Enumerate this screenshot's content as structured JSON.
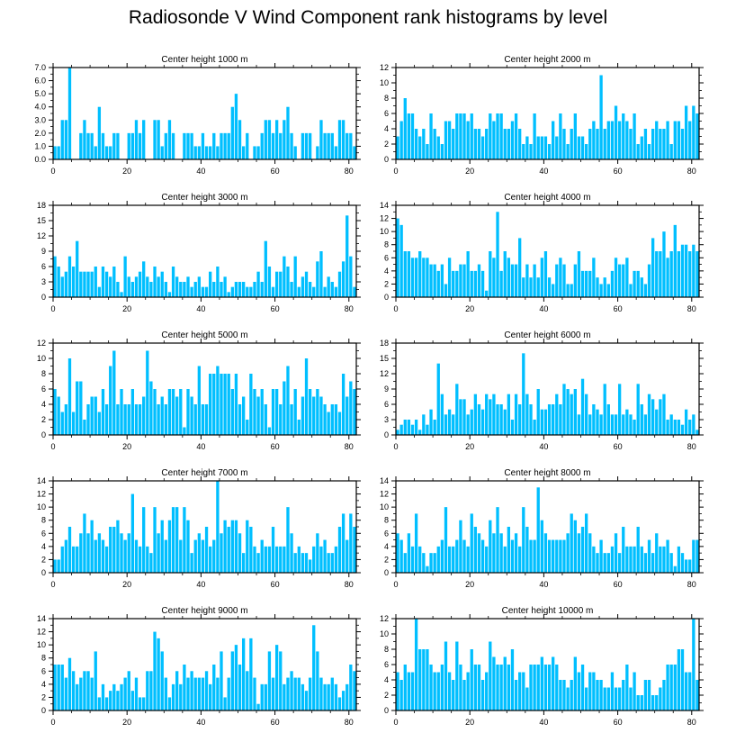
{
  "title": "Radiosonde V Wind Component rank histograms by level",
  "bar_color": "#00bfff",
  "chart_data": [
    {
      "type": "bar",
      "title": "Center height 1000 m",
      "ylim": [
        0,
        7
      ],
      "yticks": [
        0,
        1,
        2,
        3,
        4,
        5,
        6,
        7
      ],
      "ytick_labels": [
        "0.0",
        "1.0",
        "2.0",
        "3.0",
        "4.0",
        "5.0",
        "6.0",
        "7.0"
      ],
      "xticks": [
        0,
        20,
        40,
        60,
        80
      ],
      "xlim": [
        0,
        82
      ],
      "values": [
        1,
        1,
        3,
        3,
        7,
        0,
        0,
        2,
        3,
        2,
        2,
        1,
        4,
        2,
        1,
        1,
        2,
        2,
        0,
        0,
        2,
        2,
        3,
        2,
        3,
        0,
        0,
        3,
        3,
        1,
        2,
        3,
        2,
        0,
        0,
        2,
        2,
        2,
        1,
        1,
        2,
        1,
        1,
        2,
        1,
        2,
        2,
        2,
        4,
        5,
        3,
        1,
        2,
        0,
        1,
        1,
        2,
        3,
        3,
        2,
        3,
        2,
        3,
        4,
        2,
        1,
        0,
        2,
        2,
        2,
        0,
        1,
        3,
        2,
        2,
        2,
        1,
        3,
        3,
        2,
        2,
        1
      ]
    },
    {
      "type": "bar",
      "title": "Center height 2000 m",
      "ylim": [
        0,
        12
      ],
      "yticks": [
        0,
        2,
        4,
        6,
        8,
        10,
        12
      ],
      "ytick_labels": [
        "0",
        "2",
        "4",
        "6",
        "8",
        "10",
        "12"
      ],
      "xticks": [
        0,
        20,
        40,
        60,
        80
      ],
      "xlim": [
        0,
        82
      ],
      "values": [
        3,
        5,
        8,
        6,
        6,
        4,
        3,
        4,
        2,
        6,
        4,
        3,
        2,
        5,
        5,
        4,
        6,
        6,
        6,
        5,
        6,
        4,
        4,
        3,
        4,
        6,
        5,
        6,
        6,
        4,
        4,
        5,
        6,
        4,
        2,
        3,
        2,
        6,
        3,
        3,
        3,
        2,
        5,
        3,
        6,
        4,
        2,
        4,
        6,
        3,
        3,
        2,
        4,
        5,
        4,
        11,
        4,
        5,
        5,
        7,
        5,
        6,
        5,
        4,
        6,
        2,
        3,
        4,
        2,
        4,
        5,
        4,
        4,
        5,
        2,
        5,
        5,
        4,
        7,
        5,
        7,
        6
      ]
    },
    {
      "type": "bar",
      "title": "Center height 3000 m",
      "ylim": [
        0,
        18
      ],
      "yticks": [
        0,
        3,
        6,
        9,
        12,
        15,
        18
      ],
      "ytick_labels": [
        "0",
        "3",
        "6",
        "9",
        "12",
        "15",
        "18"
      ],
      "xticks": [
        0,
        20,
        40,
        60,
        80
      ],
      "xlim": [
        0,
        82
      ],
      "values": [
        8,
        6,
        4,
        5,
        8,
        6,
        11,
        5,
        5,
        5,
        5,
        6,
        2,
        6,
        5,
        4,
        6,
        3,
        1,
        8,
        4,
        3,
        4,
        5,
        7,
        4,
        3,
        6,
        4,
        5,
        3,
        1,
        6,
        4,
        3,
        3,
        4,
        2,
        3,
        4,
        2,
        2,
        5,
        3,
        6,
        3,
        4,
        1,
        2,
        3,
        3,
        3,
        2,
        2,
        3,
        5,
        3,
        11,
        6,
        2,
        5,
        5,
        8,
        6,
        3,
        8,
        2,
        4,
        5,
        3,
        2,
        7,
        9,
        2,
        4,
        3,
        2,
        5,
        7,
        16,
        8,
        2
      ]
    },
    {
      "type": "bar",
      "title": "Center height 4000 m",
      "ylim": [
        0,
        14
      ],
      "yticks": [
        0,
        2,
        4,
        6,
        8,
        10,
        12,
        14
      ],
      "ytick_labels": [
        "0",
        "2",
        "4",
        "6",
        "8",
        "10",
        "12",
        "14"
      ],
      "xticks": [
        0,
        20,
        40,
        60,
        80
      ],
      "xlim": [
        0,
        82
      ],
      "values": [
        12,
        11,
        7,
        7,
        6,
        6,
        7,
        6,
        6,
        5,
        5,
        4,
        5,
        2,
        6,
        4,
        4,
        5,
        5,
        7,
        4,
        4,
        5,
        4,
        1,
        7,
        6,
        13,
        4,
        7,
        6,
        5,
        5,
        9,
        3,
        5,
        3,
        5,
        3,
        6,
        7,
        3,
        2,
        5,
        6,
        5,
        2,
        2,
        5,
        7,
        4,
        4,
        4,
        6,
        3,
        2,
        3,
        2,
        4,
        6,
        5,
        5,
        6,
        2,
        4,
        4,
        3,
        2,
        5,
        9,
        7,
        7,
        10,
        6,
        7,
        11,
        7,
        8,
        8,
        7,
        8,
        7
      ]
    },
    {
      "type": "bar",
      "title": "Center height 5000 m",
      "ylim": [
        0,
        12
      ],
      "yticks": [
        0,
        2,
        4,
        6,
        8,
        10,
        12
      ],
      "ytick_labels": [
        "0",
        "2",
        "4",
        "6",
        "8",
        "10",
        "12"
      ],
      "xticks": [
        0,
        20,
        40,
        60,
        80
      ],
      "xlim": [
        0,
        82
      ],
      "values": [
        6,
        5,
        3,
        4,
        10,
        3,
        7,
        7,
        2,
        4,
        5,
        5,
        3,
        6,
        4,
        9,
        11,
        4,
        6,
        4,
        4,
        6,
        4,
        4,
        5,
        11,
        7,
        6,
        4,
        5,
        4,
        6,
        6,
        5,
        6,
        1,
        6,
        5,
        4,
        9,
        4,
        4,
        8,
        8,
        9,
        8,
        8,
        8,
        6,
        8,
        4,
        5,
        2,
        8,
        6,
        5,
        6,
        4,
        1,
        6,
        6,
        4,
        7,
        9,
        4,
        6,
        2,
        5,
        10,
        6,
        5,
        6,
        5,
        4,
        3,
        4,
        4,
        3,
        8,
        5,
        7,
        6
      ]
    },
    {
      "type": "bar",
      "title": "Center height 6000 m",
      "ylim": [
        0,
        18
      ],
      "yticks": [
        0,
        3,
        6,
        9,
        12,
        15,
        18
      ],
      "ytick_labels": [
        "0",
        "3",
        "6",
        "9",
        "12",
        "15",
        "18"
      ],
      "xticks": [
        0,
        20,
        40,
        60,
        80
      ],
      "xlim": [
        0,
        82
      ],
      "values": [
        1,
        2,
        3,
        3,
        2,
        3,
        1,
        4,
        2,
        5,
        3,
        14,
        8,
        4,
        5,
        4,
        10,
        7,
        7,
        4,
        5,
        8,
        6,
        5,
        8,
        7,
        8,
        6,
        6,
        5,
        8,
        3,
        8,
        6,
        16,
        8,
        6,
        3,
        9,
        5,
        5,
        6,
        6,
        8,
        6,
        10,
        9,
        8,
        9,
        4,
        11,
        8,
        4,
        6,
        5,
        4,
        10,
        6,
        4,
        4,
        10,
        4,
        5,
        4,
        3,
        10,
        6,
        4,
        8,
        7,
        5,
        7,
        8,
        3,
        4,
        3,
        3,
        2,
        5,
        3,
        4,
        1
      ]
    },
    {
      "type": "bar",
      "title": "Center height 7000 m",
      "ylim": [
        0,
        14
      ],
      "yticks": [
        0,
        2,
        4,
        6,
        8,
        10,
        12,
        14
      ],
      "ytick_labels": [
        "0",
        "2",
        "4",
        "6",
        "8",
        "10",
        "12",
        "14"
      ],
      "xticks": [
        0,
        20,
        40,
        60,
        80
      ],
      "xlim": [
        0,
        82
      ],
      "values": [
        2,
        2,
        4,
        5,
        7,
        4,
        4,
        6,
        9,
        6,
        8,
        5,
        6,
        5,
        4,
        7,
        7,
        8,
        6,
        5,
        6,
        12,
        5,
        4,
        10,
        4,
        3,
        10,
        6,
        8,
        5,
        8,
        10,
        10,
        5,
        10,
        8,
        3,
        5,
        6,
        5,
        7,
        4,
        5,
        14,
        6,
        8,
        7,
        8,
        8,
        6,
        3,
        8,
        7,
        4,
        3,
        5,
        4,
        4,
        7,
        4,
        4,
        4,
        10,
        6,
        3,
        4,
        3,
        3,
        2,
        4,
        6,
        4,
        5,
        3,
        3,
        4,
        7,
        9,
        5,
        9,
        7
      ]
    },
    {
      "type": "bar",
      "title": "Center height 8000 m",
      "ylim": [
        0,
        14
      ],
      "yticks": [
        0,
        2,
        4,
        6,
        8,
        10,
        12,
        14
      ],
      "ytick_labels": [
        "0",
        "2",
        "4",
        "6",
        "8",
        "10",
        "12",
        "14"
      ],
      "xticks": [
        0,
        20,
        40,
        60,
        80
      ],
      "xlim": [
        0,
        82
      ],
      "values": [
        6,
        5,
        3,
        6,
        4,
        9,
        4,
        3,
        1,
        3,
        3,
        4,
        5,
        10,
        4,
        4,
        5,
        8,
        5,
        4,
        9,
        7,
        6,
        5,
        4,
        8,
        6,
        10,
        6,
        4,
        7,
        5,
        6,
        4,
        10,
        7,
        5,
        5,
        13,
        8,
        6,
        5,
        5,
        5,
        5,
        5,
        6,
        9,
        8,
        6,
        7,
        9,
        6,
        4,
        3,
        5,
        3,
        3,
        4,
        6,
        3,
        7,
        4,
        4,
        4,
        7,
        4,
        3,
        5,
        3,
        6,
        4,
        4,
        5,
        3,
        1,
        4,
        3,
        2,
        2,
        5,
        5
      ]
    },
    {
      "type": "bar",
      "title": "Center height 9000 m",
      "ylim": [
        0,
        14
      ],
      "yticks": [
        0,
        2,
        4,
        6,
        8,
        10,
        12,
        14
      ],
      "ytick_labels": [
        "0",
        "2",
        "4",
        "6",
        "8",
        "10",
        "12",
        "14"
      ],
      "xticks": [
        0,
        20,
        40,
        60,
        80
      ],
      "xlim": [
        0,
        82
      ],
      "values": [
        7,
        7,
        7,
        5,
        8,
        6,
        4,
        5,
        6,
        6,
        5,
        9,
        2,
        4,
        2,
        3,
        4,
        3,
        4,
        5,
        6,
        3,
        5,
        2,
        2,
        6,
        6,
        12,
        11,
        9,
        5,
        2,
        4,
        6,
        4,
        7,
        5,
        6,
        5,
        5,
        5,
        6,
        4,
        7,
        5,
        9,
        2,
        5,
        9,
        10,
        7,
        11,
        6,
        11,
        5,
        1,
        4,
        4,
        9,
        5,
        10,
        9,
        4,
        5,
        6,
        5,
        5,
        4,
        3,
        5,
        13,
        9,
        5,
        4,
        4,
        5,
        4,
        2,
        3,
        4,
        7,
        6
      ]
    },
    {
      "type": "bar",
      "title": "Center height 10000 m",
      "ylim": [
        0,
        12
      ],
      "yticks": [
        0,
        2,
        4,
        6,
        8,
        10,
        12
      ],
      "ytick_labels": [
        "0",
        "2",
        "4",
        "6",
        "8",
        "10",
        "12"
      ],
      "xticks": [
        0,
        20,
        40,
        60,
        80
      ],
      "xlim": [
        0,
        82
      ],
      "values": [
        5,
        4,
        6,
        5,
        5,
        12,
        8,
        8,
        8,
        6,
        5,
        5,
        6,
        9,
        5,
        4,
        9,
        6,
        4,
        5,
        8,
        6,
        6,
        4,
        5,
        9,
        7,
        6,
        6,
        7,
        6,
        8,
        4,
        5,
        5,
        3,
        6,
        6,
        6,
        7,
        6,
        6,
        7,
        6,
        4,
        4,
        3,
        4,
        7,
        5,
        6,
        3,
        5,
        5,
        4,
        4,
        3,
        3,
        5,
        3,
        3,
        4,
        6,
        3,
        5,
        2,
        2,
        4,
        4,
        2,
        2,
        3,
        4,
        6,
        6,
        6,
        8,
        8,
        5,
        5,
        12,
        4
      ]
    }
  ]
}
